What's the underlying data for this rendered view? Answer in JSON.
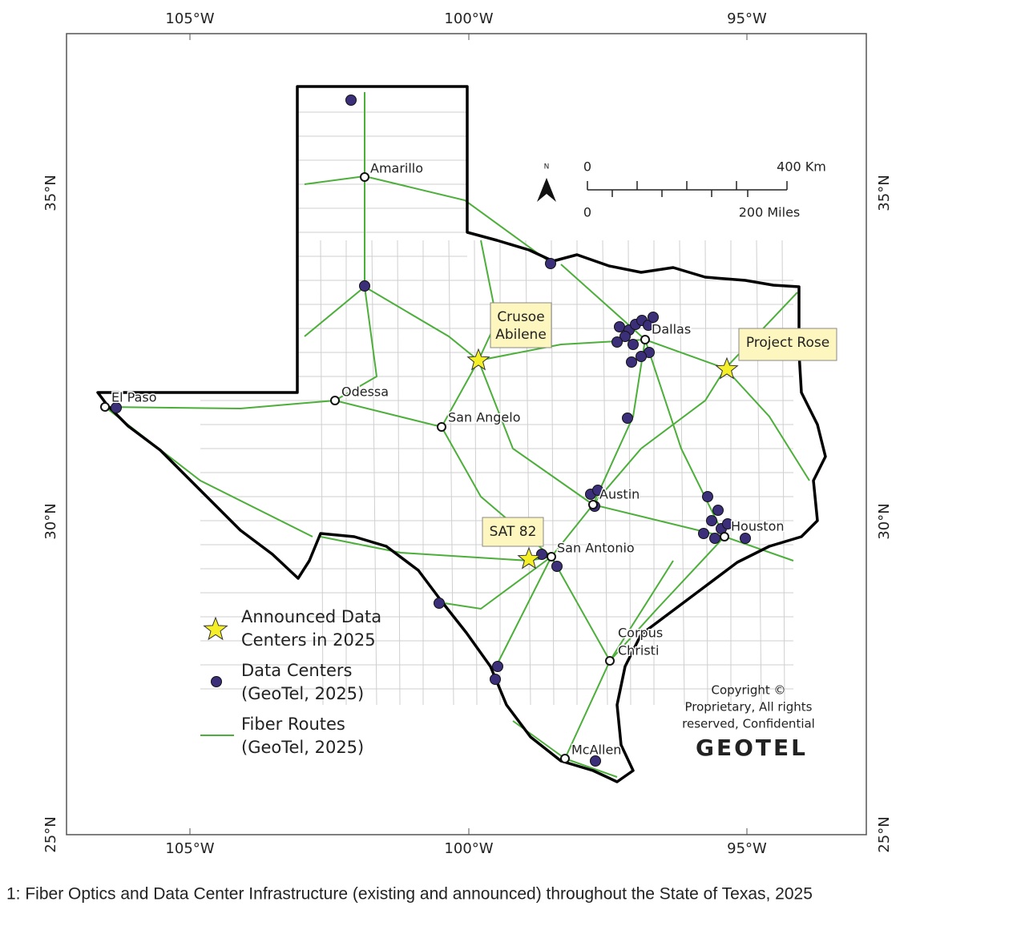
{
  "frame": {
    "top_labels": [
      "105°W",
      "100°W",
      "95°W"
    ],
    "bottom_labels": [
      "105°W",
      "100°W",
      "95°W"
    ],
    "left_labels": [
      "35°N",
      "30°N",
      "25°N"
    ],
    "right_labels": [
      "35°N",
      "30°N",
      "25°N"
    ]
  },
  "cities": [
    [
      "Amarillo"
    ],
    [
      "Odessa"
    ],
    [
      "San Angelo"
    ],
    [
      "El Paso"
    ],
    [
      "Dallas"
    ],
    [
      "Austin"
    ],
    [
      "Houston"
    ],
    [
      "San Antonio"
    ],
    [
      "Corpus",
      "Christi"
    ],
    [
      "McAllen"
    ]
  ],
  "callouts": [
    [
      "Crusoe",
      "Abilene"
    ],
    [
      "Project Rose"
    ],
    [
      "SAT 82"
    ]
  ],
  "scale_bar": {
    "north": "N",
    "km_start": "0",
    "km_end": "400 Km",
    "mi_start": "0",
    "mi_end": "200 Miles"
  },
  "legend": [
    [
      "Announced Data",
      "Centers in 2025"
    ],
    [
      "Data Centers",
      "(GeoTel, 2025)"
    ],
    [
      "Fiber Routes",
      "(GeoTel, 2025)"
    ]
  ],
  "copyright": [
    "Copyright ©",
    "Proprietary, All rights",
    "reserved, Confidential"
  ],
  "logo": "GEOTEL",
  "caption": "1: Fiber Optics and Data Center Infrastructure (existing and announced) throughout the State of Texas, 2025"
}
